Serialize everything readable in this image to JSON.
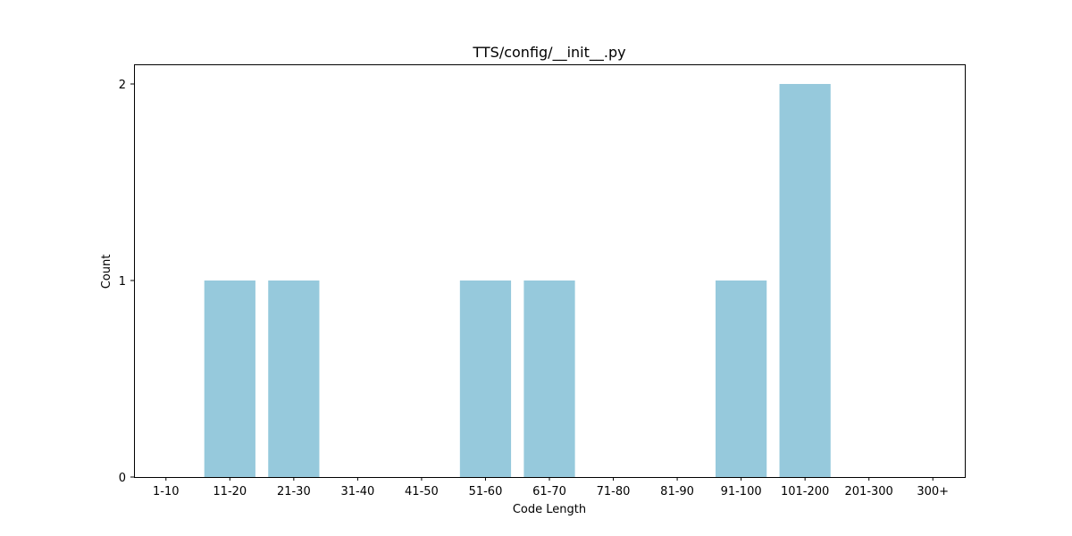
{
  "chart_data": {
    "type": "bar",
    "title": "TTS/config/__init__.py",
    "xlabel": "Code Length",
    "ylabel": "Count",
    "categories": [
      "1-10",
      "11-20",
      "21-30",
      "31-40",
      "41-50",
      "51-60",
      "61-70",
      "71-80",
      "81-90",
      "91-100",
      "101-200",
      "201-300",
      "300+"
    ],
    "values": [
      0,
      1,
      1,
      0,
      0,
      1,
      1,
      0,
      0,
      1,
      2,
      0,
      0
    ],
    "yticks": [
      "0",
      "1",
      "2"
    ],
    "ylim": [
      0,
      2.1
    ],
    "bar_color": "#96c9dc",
    "grid": false,
    "legend": "none"
  }
}
